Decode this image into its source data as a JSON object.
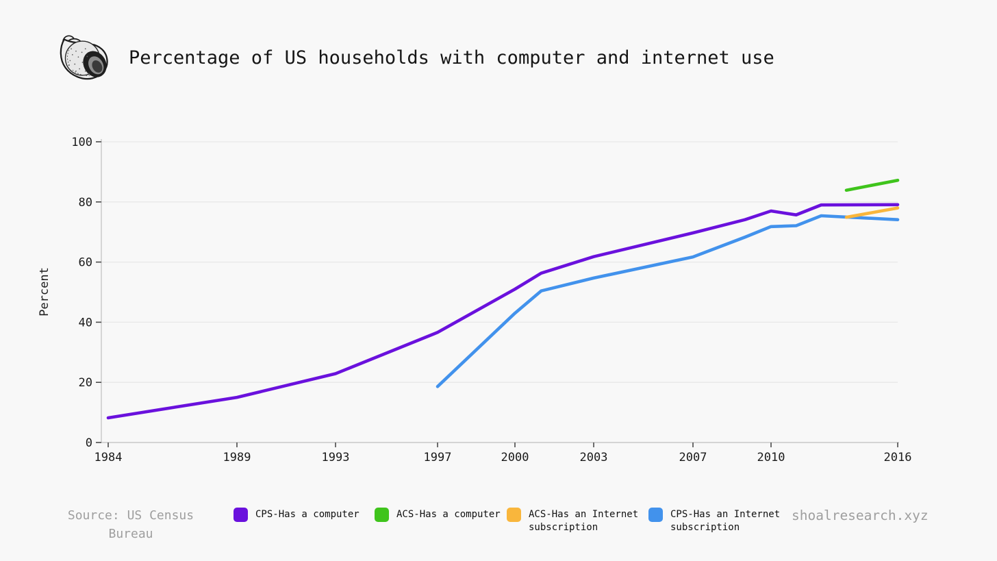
{
  "page": {
    "background": "#f8f8f8"
  },
  "header": {
    "logo": "snail-shell-logo",
    "title": "Percentage of US households with computer and internet use"
  },
  "footer": {
    "source_line1": "Source: US Census",
    "source_line2": "Bureau",
    "watermark": "shoalresearch.xyz"
  },
  "colors": {
    "cps_computer": "#6a11dd",
    "acs_computer": "#3fc41c",
    "acs_internet": "#f9b63c",
    "cps_internet": "#4292ec",
    "grid": "#e8e8e8",
    "axis_line": "#c8c8c8",
    "tick_mark": "#4a4a4a",
    "tick_text": "#1a1a1a",
    "muted_text": "#9e9e9e"
  },
  "chart_data": {
    "type": "line",
    "title": "Percentage of US households with computer and internet use",
    "xlabel": "",
    "ylabel": "Percent",
    "ylim": [
      0,
      100
    ],
    "y_ticks": [
      0,
      20,
      40,
      60,
      80,
      100
    ],
    "x_ticks": [
      1984,
      1989,
      1993,
      1997,
      2000,
      2003,
      2007,
      2010,
      2016
    ],
    "grid": "horizontal",
    "legend_position": "bottom",
    "series": [
      {
        "name": "CPS-Has a computer",
        "color": "#6a11dd",
        "x": [
          1984,
          1989,
          1993,
          1997,
          2000,
          2001,
          2003,
          2007,
          2009,
          2010,
          2011,
          2012,
          2016
        ],
        "values": [
          8.2,
          15.0,
          22.9,
          36.6,
          51.0,
          56.3,
          61.8,
          69.7,
          74.1,
          77.0,
          75.7,
          79.0,
          79.1
        ]
      },
      {
        "name": "ACS-Has a computer",
        "color": "#3fc41c",
        "x": [
          2013,
          2016
        ],
        "values": [
          83.9,
          87.2
        ]
      },
      {
        "name": "ACS-Has an Internet subscription",
        "color": "#f9b63c",
        "x": [
          2013,
          2016
        ],
        "values": [
          74.9,
          78.0
        ]
      },
      {
        "name": "CPS-Has an Internet subscription",
        "color": "#4292ec",
        "x": [
          1997,
          2000,
          2001,
          2003,
          2007,
          2009,
          2010,
          2011,
          2012,
          2016
        ],
        "values": [
          18.6,
          43.0,
          50.4,
          54.7,
          61.7,
          68.3,
          71.8,
          72.1,
          75.4,
          74.1
        ]
      }
    ]
  }
}
